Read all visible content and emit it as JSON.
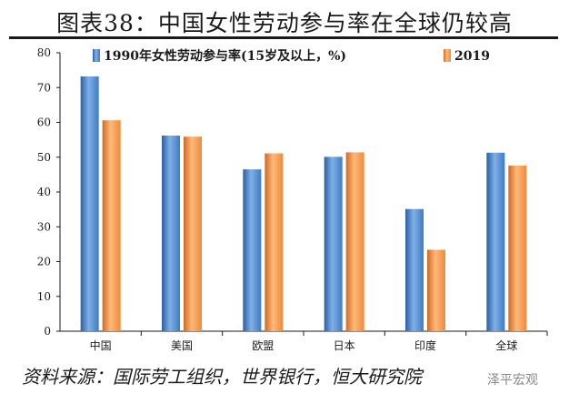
{
  "title": "图表38：中国女性劳动参与率在全球仍较高",
  "source": "资料来源：国际劳工组织，世界银行，恒大研究院",
  "watermark": "泽平宏观",
  "chart_data": {
    "type": "bar",
    "categories": [
      "中国",
      "美国",
      "欧盟",
      "日本",
      "印度",
      "全球"
    ],
    "series": [
      {
        "name": "1990年女性劳动参与率(15岁及以上，%)",
        "values": [
          73.2,
          56.2,
          46.5,
          50.1,
          35.1,
          51.3
        ],
        "color": "#3f7bc4"
      },
      {
        "name": "2019",
        "values": [
          60.6,
          55.9,
          51.1,
          51.4,
          23.4,
          47.6
        ],
        "color": "#ee8a3c"
      }
    ],
    "ylim": [
      0,
      80
    ],
    "yticks": [
      0,
      10,
      20,
      30,
      40,
      50,
      60,
      70,
      80
    ],
    "legend_position": "top",
    "grid": false
  }
}
